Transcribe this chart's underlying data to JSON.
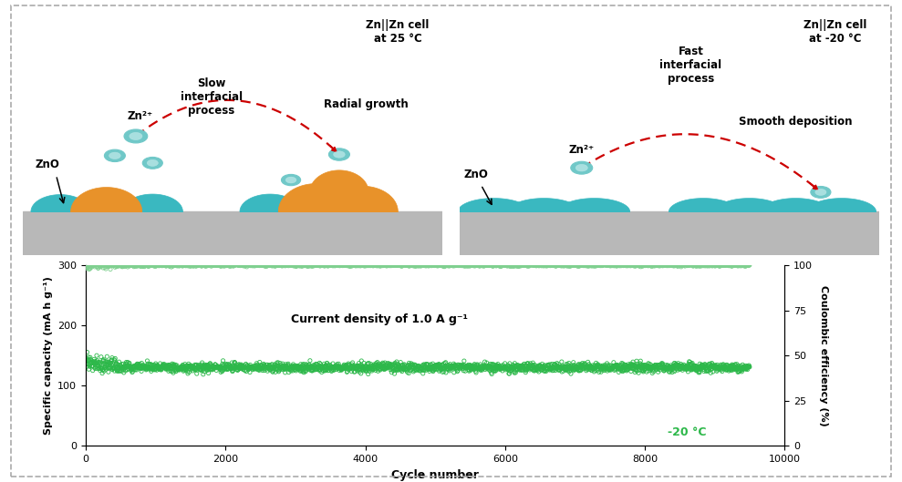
{
  "fig_width": 9.89,
  "fig_height": 5.29,
  "dpi": 100,
  "outer_bg": "#ffffff",
  "outer_border_color": "#aaaaaa",
  "top_left_bg": "#fefde8",
  "top_right_bg": "#e4f6f6",
  "plate_color": "#b8b8b8",
  "sphere_teal_color": "#3ab8c0",
  "sphere_teal_edge": "#2a9aa2",
  "sphere_orange_color": "#e8922a",
  "sphere_orange_edge": "#c87010",
  "ion_fill": "#70c8c8",
  "ion_edge": "#38a0a8",
  "ion_inner": "#c0eaea",
  "arrow_color": "#cc0000",
  "capacity_color": "#2db84a",
  "capacity_edge": "#1a8a32",
  "ce_color": "#80d090",
  "ce_edge": "#50b060",
  "xlim": [
    0,
    10000
  ],
  "ylim_left": [
    0,
    300
  ],
  "ylim_right": [
    0,
    100
  ],
  "xticks": [
    0,
    2000,
    4000,
    6000,
    8000,
    10000
  ],
  "yticks_left": [
    0,
    100,
    200,
    300
  ],
  "yticks_right": [
    0,
    25,
    50,
    75,
    100
  ],
  "xlabel": "Cycle number",
  "ylabel_left": "Specific capacity (mA h g⁻¹)",
  "ylabel_right": "Coulombic efficiency (%)",
  "annotation": "Current density of 1.0 A g⁻¹",
  "temp_label": "-20 °C",
  "title_left": "Zn||Zn cell\nat 25 °C",
  "title_right": "Zn||Zn cell\nat -20 °C",
  "label_zno": "ZnO",
  "label_ion": "Zn²⁺",
  "label_slow": "Slow\ninterfacial\nprocess",
  "label_radial": "Radial growth",
  "label_fast": "Fast\ninterfacial\nprocess",
  "label_smooth": "Smooth deposition"
}
